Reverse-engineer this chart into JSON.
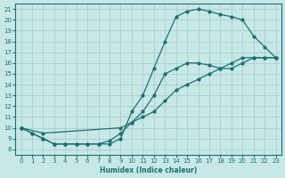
{
  "xlabel": "Humidex (Indice chaleur)",
  "xlim": [
    -0.5,
    23.5
  ],
  "ylim": [
    7.5,
    21.5
  ],
  "xticks": [
    0,
    1,
    2,
    3,
    4,
    5,
    6,
    7,
    8,
    9,
    10,
    11,
    12,
    13,
    14,
    15,
    16,
    17,
    18,
    19,
    20,
    21,
    22,
    23
  ],
  "yticks": [
    8,
    9,
    10,
    11,
    12,
    13,
    14,
    15,
    16,
    17,
    18,
    19,
    20,
    21
  ],
  "bg_color": "#c8e8e8",
  "line_color": "#1a7070",
  "grid_color": "#b0d0d0",
  "series1_x": [
    0,
    1,
    2,
    3,
    4,
    5,
    6,
    7,
    8,
    9,
    10,
    11,
    12,
    13,
    14,
    15,
    16,
    17,
    18,
    19,
    20,
    21,
    22,
    23
  ],
  "series1_y": [
    10,
    9.5,
    9.0,
    8.5,
    8.5,
    8.5,
    8.5,
    8.5,
    8.5,
    9.0,
    11.5,
    13.0,
    15.5,
    18.0,
    20.3,
    20.8,
    21.0,
    20.8,
    20.5,
    20.3,
    20.0,
    18.5,
    17.5,
    16.5
  ],
  "series2_x": [
    0,
    1,
    2,
    3,
    4,
    5,
    6,
    7,
    8,
    9,
    10,
    11,
    12,
    13,
    14,
    15,
    16,
    17,
    18,
    19,
    20,
    21,
    22,
    23
  ],
  "series2_y": [
    10,
    9.5,
    9.0,
    8.5,
    8.5,
    8.5,
    8.5,
    8.5,
    8.8,
    9.5,
    10.5,
    11.5,
    13.0,
    15.0,
    15.5,
    16.0,
    16.0,
    15.8,
    15.5,
    15.5,
    16.0,
    16.5,
    16.5,
    16.5
  ],
  "series3_x": [
    0,
    2,
    9,
    10,
    11,
    12,
    13,
    14,
    15,
    16,
    17,
    18,
    19,
    20,
    21,
    22,
    23
  ],
  "series3_y": [
    10,
    9.5,
    10.0,
    10.5,
    11.0,
    11.5,
    12.5,
    13.5,
    14.0,
    14.5,
    15.0,
    15.5,
    16.0,
    16.5,
    16.5,
    16.5,
    16.5
  ]
}
